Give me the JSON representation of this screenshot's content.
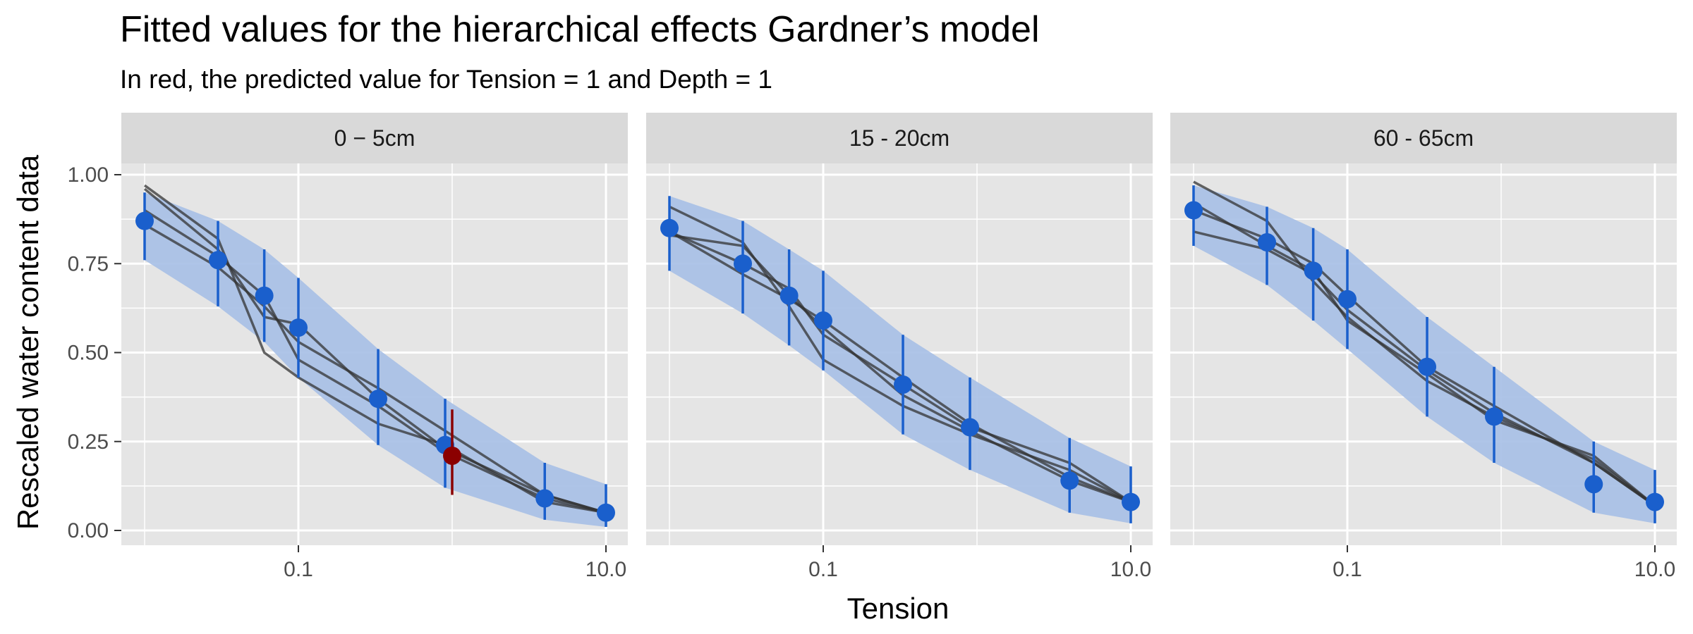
{
  "title": "Fitted values for the hierarchical effects Gardner’s model",
  "subtitle": "In red, the predicted value for Tension = 1 and Depth = 1",
  "colors": {
    "panel_bg": "#e5e5e5",
    "strip_bg": "#d9d9d9",
    "grid": "#ffffff",
    "point": "#1a5fcc",
    "ribbon": "#a6bfe6",
    "observed_line": "#333333",
    "highlight": "#8b0000"
  },
  "chart_data": {
    "type": "line",
    "xlabel": "Tension",
    "ylabel": "Rescaled water content data",
    "x_scale": "log10",
    "xlim": [
      0.01,
      10
    ],
    "ylim": [
      0,
      1
    ],
    "x_ticks": [
      0.1,
      10
    ],
    "x_tick_labels": [
      "0.1",
      "10.0"
    ],
    "y_ticks": [
      0,
      0.25,
      0.5,
      0.75,
      1
    ],
    "y_tick_labels": [
      "0.00",
      "0.25",
      "0.50",
      "0.75",
      "1.00"
    ],
    "grid": true,
    "panels": [
      {
        "strip": "0 − 5cm",
        "fitted": {
          "x": [
            0.01,
            0.03,
            0.06,
            0.1,
            0.33,
            0.9,
            4,
            10
          ],
          "y": [
            0.87,
            0.76,
            0.66,
            0.57,
            0.37,
            0.24,
            0.09,
            0.05
          ],
          "lower": [
            0.76,
            0.63,
            0.53,
            0.43,
            0.24,
            0.12,
            0.03,
            0.01
          ],
          "upper": [
            0.95,
            0.87,
            0.79,
            0.71,
            0.51,
            0.37,
            0.19,
            0.13
          ]
        },
        "highlight": {
          "x": 1,
          "y": 0.21,
          "lower": 0.1,
          "upper": 0.34
        },
        "observed": [
          {
            "x": [
              0.01,
              0.03,
              0.06,
              0.1,
              0.33,
              0.9,
              4,
              10
            ],
            "y": [
              0.97,
              0.82,
              0.5,
              0.43,
              0.3,
              0.24,
              0.08,
              0.05
            ]
          },
          {
            "x": [
              0.01,
              0.03,
              0.06,
              0.1,
              0.33,
              0.9,
              4,
              10
            ],
            "y": [
              0.96,
              0.79,
              0.6,
              0.58,
              0.37,
              0.23,
              0.1,
              0.05
            ]
          },
          {
            "x": [
              0.01,
              0.03,
              0.06,
              0.1,
              0.33,
              0.9,
              4,
              10
            ],
            "y": [
              0.86,
              0.74,
              0.63,
              0.53,
              0.4,
              0.28,
              0.1,
              0.05
            ]
          },
          {
            "x": [
              0.01,
              0.03,
              0.06,
              0.1,
              0.33,
              0.9,
              4,
              10
            ],
            "y": [
              0.9,
              0.77,
              0.66,
              0.48,
              0.35,
              0.22,
              0.09,
              0.05
            ]
          }
        ]
      },
      {
        "strip": "15 - 20cm",
        "fitted": {
          "x": [
            0.01,
            0.03,
            0.06,
            0.1,
            0.33,
            0.9,
            4,
            10
          ],
          "y": [
            0.85,
            0.75,
            0.66,
            0.59,
            0.41,
            0.29,
            0.14,
            0.08
          ],
          "lower": [
            0.73,
            0.61,
            0.52,
            0.45,
            0.27,
            0.17,
            0.05,
            0.02
          ],
          "upper": [
            0.94,
            0.87,
            0.79,
            0.73,
            0.55,
            0.43,
            0.26,
            0.18
          ]
        },
        "observed": [
          {
            "x": [
              0.01,
              0.03,
              0.06,
              0.1,
              0.33,
              0.9,
              4,
              10
            ],
            "y": [
              0.91,
              0.81,
              0.63,
              0.48,
              0.35,
              0.27,
              0.17,
              0.08
            ]
          },
          {
            "x": [
              0.01,
              0.03,
              0.06,
              0.1,
              0.33,
              0.9,
              4,
              10
            ],
            "y": [
              0.84,
              0.75,
              0.68,
              0.55,
              0.41,
              0.29,
              0.19,
              0.08
            ]
          },
          {
            "x": [
              0.01,
              0.03,
              0.06,
              0.1,
              0.33,
              0.9,
              4,
              10
            ],
            "y": [
              0.83,
              0.8,
              0.66,
              0.57,
              0.38,
              0.28,
              0.14,
              0.08
            ]
          },
          {
            "x": [
              0.01,
              0.03,
              0.06,
              0.1,
              0.33,
              0.9,
              4,
              10
            ],
            "y": [
              0.84,
              0.72,
              0.65,
              0.59,
              0.43,
              0.3,
              0.15,
              0.08
            ]
          }
        ]
      },
      {
        "strip": "60 - 65cm",
        "fitted": {
          "x": [
            0.01,
            0.03,
            0.06,
            0.1,
            0.33,
            0.9,
            4,
            10
          ],
          "y": [
            0.9,
            0.81,
            0.73,
            0.65,
            0.46,
            0.32,
            0.13,
            0.08
          ],
          "lower": [
            0.8,
            0.69,
            0.59,
            0.51,
            0.32,
            0.19,
            0.05,
            0.02
          ],
          "upper": [
            0.97,
            0.91,
            0.85,
            0.79,
            0.6,
            0.46,
            0.25,
            0.17
          ]
        },
        "observed": [
          {
            "x": [
              0.01,
              0.03,
              0.06,
              0.1,
              0.33,
              0.9,
              4,
              10
            ],
            "y": [
              0.98,
              0.87,
              0.7,
              0.6,
              0.42,
              0.32,
              0.2,
              0.07
            ]
          },
          {
            "x": [
              0.01,
              0.03,
              0.06,
              0.1,
              0.33,
              0.9,
              4,
              10
            ],
            "y": [
              0.84,
              0.79,
              0.72,
              0.62,
              0.45,
              0.33,
              0.19,
              0.07
            ]
          },
          {
            "x": [
              0.01,
              0.03,
              0.06,
              0.1,
              0.33,
              0.9,
              4,
              10
            ],
            "y": [
              0.9,
              0.82,
              0.75,
              0.66,
              0.46,
              0.35,
              0.19,
              0.07
            ]
          },
          {
            "x": [
              0.01,
              0.03,
              0.06,
              0.1,
              0.33,
              0.9,
              4,
              10
            ],
            "y": [
              0.92,
              0.8,
              0.73,
              0.59,
              0.44,
              0.31,
              0.21,
              0.07
            ]
          }
        ]
      }
    ]
  }
}
